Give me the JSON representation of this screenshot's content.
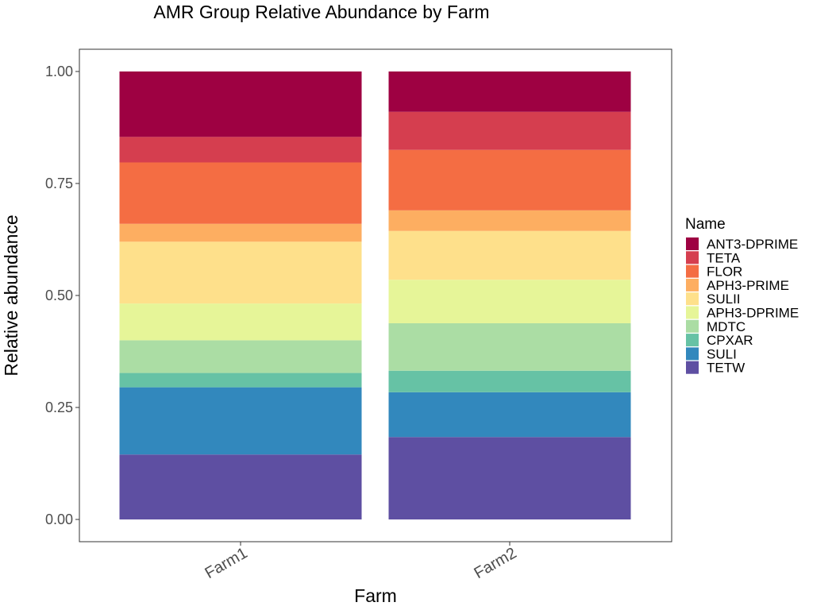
{
  "chart_data": {
    "type": "bar",
    "stacked": true,
    "title": "AMR Group Relative Abundance by Farm",
    "xlabel": "Farm",
    "ylabel": "Relative abundance",
    "categories": [
      "Farm1",
      "Farm2"
    ],
    "ylim": [
      0,
      1
    ],
    "yticks": [
      0.0,
      0.25,
      0.5,
      0.75,
      1.0
    ],
    "ytick_labels": [
      "0.00",
      "0.25",
      "0.50",
      "0.75",
      "1.00"
    ],
    "grid": false,
    "legend": {
      "title": "Name",
      "position": "right"
    },
    "series": [
      {
        "name": "TETW",
        "color": "#5E4FA2",
        "values": [
          0.145,
          0.184
        ]
      },
      {
        "name": "SULI",
        "color": "#3288BD",
        "values": [
          0.15,
          0.1
        ]
      },
      {
        "name": "CPXAR",
        "color": "#66C2A5",
        "values": [
          0.032,
          0.048
        ]
      },
      {
        "name": "MDTC",
        "color": "#ABDDA4",
        "values": [
          0.073,
          0.106
        ]
      },
      {
        "name": "APH3-DPRIME",
        "color": "#E6F598",
        "values": [
          0.082,
          0.097
        ]
      },
      {
        "name": "SULII",
        "color": "#FEE08B",
        "values": [
          0.138,
          0.109
        ]
      },
      {
        "name": "APH3-PRIME",
        "color": "#FDAE61",
        "values": [
          0.04,
          0.046
        ]
      },
      {
        "name": "FLOR",
        "color": "#F46D43",
        "values": [
          0.137,
          0.135
        ]
      },
      {
        "name": "TETA",
        "color": "#D53E4F",
        "values": [
          0.057,
          0.085
        ]
      },
      {
        "name": "ANT3-DPRIME",
        "color": "#9E0142",
        "values": [
          0.146,
          0.09
        ]
      }
    ]
  }
}
